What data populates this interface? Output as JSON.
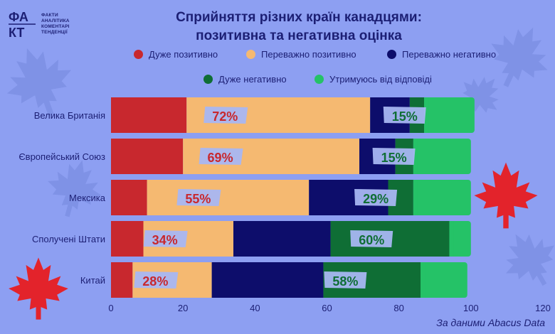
{
  "logo": {
    "mark_text": "ФАКТ",
    "lines": [
      "ФАКТИ",
      "АНАЛІТИКА",
      "КОМЕНТАРІ",
      "ТЕНДЕНЦІЇ"
    ]
  },
  "colors": {
    "background": "#8d9ff2",
    "text": "#1c1f74",
    "very_positive": "#c8282e",
    "mostly_positive": "#f5b971",
    "mostly_negative": "#0d0d6b",
    "very_negative": "#0f6e35",
    "abstain": "#25c267",
    "label_box": "#a8b6f2"
  },
  "source": "За даними Abacus Data",
  "chart_data": {
    "type": "bar",
    "orientation": "horizontal",
    "stacked": true,
    "title": "Сприйняття різних країн канадцями:",
    "subtitle": "позитивна та негативна оцінка",
    "legend_placement": "top",
    "categories": [
      "Велика Британія",
      "Європейський Союз",
      "Мексика",
      "Сполучені Штати",
      "Китай"
    ],
    "series": [
      {
        "name": "Дуже позитивно",
        "color": "#c8282e",
        "values": [
          21,
          20,
          10,
          9,
          6
        ]
      },
      {
        "name": "Переважно позитивно",
        "color": "#f5b971",
        "values": [
          51,
          49,
          45,
          25,
          22
        ]
      },
      {
        "name": "Переважно негативно",
        "color": "#0d0d6b",
        "values": [
          11,
          10,
          22,
          27,
          31
        ]
      },
      {
        "name": "Дуже негативно",
        "color": "#0f6e35",
        "values": [
          4,
          5,
          7,
          33,
          27
        ]
      },
      {
        "name": "Утримуюсь від відповіді",
        "color": "#25c267",
        "values": [
          14,
          16,
          16,
          6,
          13
        ]
      }
    ],
    "positive_labels": [
      "72%",
      "69%",
      "55%",
      "34%",
      "28%"
    ],
    "negative_labels": [
      "15%",
      "15%",
      "29%",
      "60%",
      "58%"
    ],
    "xlim": [
      0,
      120
    ],
    "xticks": [
      0,
      20,
      40,
      60,
      80,
      100,
      120
    ],
    "grid": false
  }
}
